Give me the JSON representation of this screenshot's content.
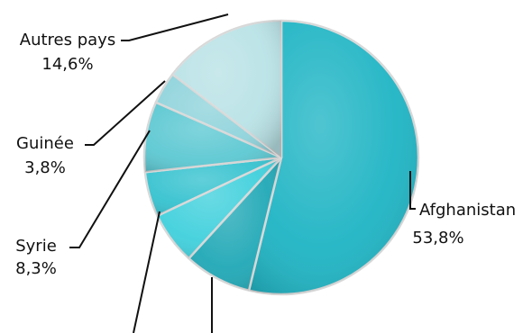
{
  "chart_data": {
    "type": "pie",
    "title": "",
    "slices": [
      {
        "label": "Afghanistan",
        "value": 53.8,
        "value_text": "53,8%",
        "color": "#1eb4c4"
      },
      {
        "label": "",
        "value": 8.0,
        "value_text": "",
        "color": "#20a8b6"
      },
      {
        "label": "",
        "value": 6.2,
        "value_text": "",
        "color": "#3fd0dc"
      },
      {
        "label": "",
        "value": 5.3,
        "value_text": "",
        "color": "#35c2cf"
      },
      {
        "label": "Syrie",
        "value": 8.3,
        "value_text": "8,3%",
        "color": "#5cc8d2"
      },
      {
        "label": "Guinée",
        "value": 3.8,
        "value_text": "3,8%",
        "color": "#8fd3db"
      },
      {
        "label": "Autres pays",
        "value": 14.6,
        "value_text": "14,6%",
        "color": "#b9e2e6"
      }
    ],
    "start_angle_deg": 0,
    "direction": "clockwise",
    "legend": "none"
  }
}
